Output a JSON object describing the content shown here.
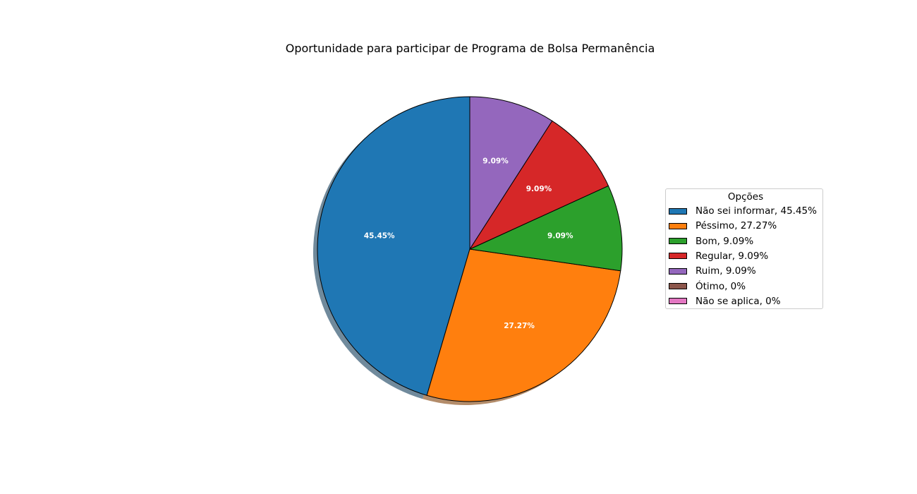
{
  "chart_data": {
    "type": "pie",
    "title": "Oportunidade para participar de Programa de Bolsa Permanência",
    "legend_title": "Opções",
    "legend_position": "right",
    "shadow": true,
    "start_angle": 90,
    "direction": "counterclockwise",
    "slices": [
      {
        "label": "Não sei informar",
        "value": 45.45,
        "pct_label": "45.45%",
        "legend": "Não sei informar, 45.45%",
        "color": "#1f77b4"
      },
      {
        "label": "Péssimo",
        "value": 27.27,
        "pct_label": "27.27%",
        "legend": "Péssimo, 27.27%",
        "color": "#ff7f0e"
      },
      {
        "label": "Bom",
        "value": 9.09,
        "pct_label": "9.09%",
        "legend": "Bom, 9.09%",
        "color": "#2ca02c"
      },
      {
        "label": "Regular",
        "value": 9.09,
        "pct_label": "9.09%",
        "legend": "Regular, 9.09%",
        "color": "#d62728"
      },
      {
        "label": "Ruim",
        "value": 9.09,
        "pct_label": "9.09%",
        "legend": "Ruim, 9.09%",
        "color": "#9467bd"
      },
      {
        "label": "Ótimo",
        "value": 0,
        "pct_label": "0%",
        "legend": "Ótimo, 0%",
        "color": "#8c564b"
      },
      {
        "label": "Não se aplica",
        "value": 0,
        "pct_label": "0%",
        "legend": "Não se aplica, 0%",
        "color": "#e377c2"
      }
    ]
  }
}
